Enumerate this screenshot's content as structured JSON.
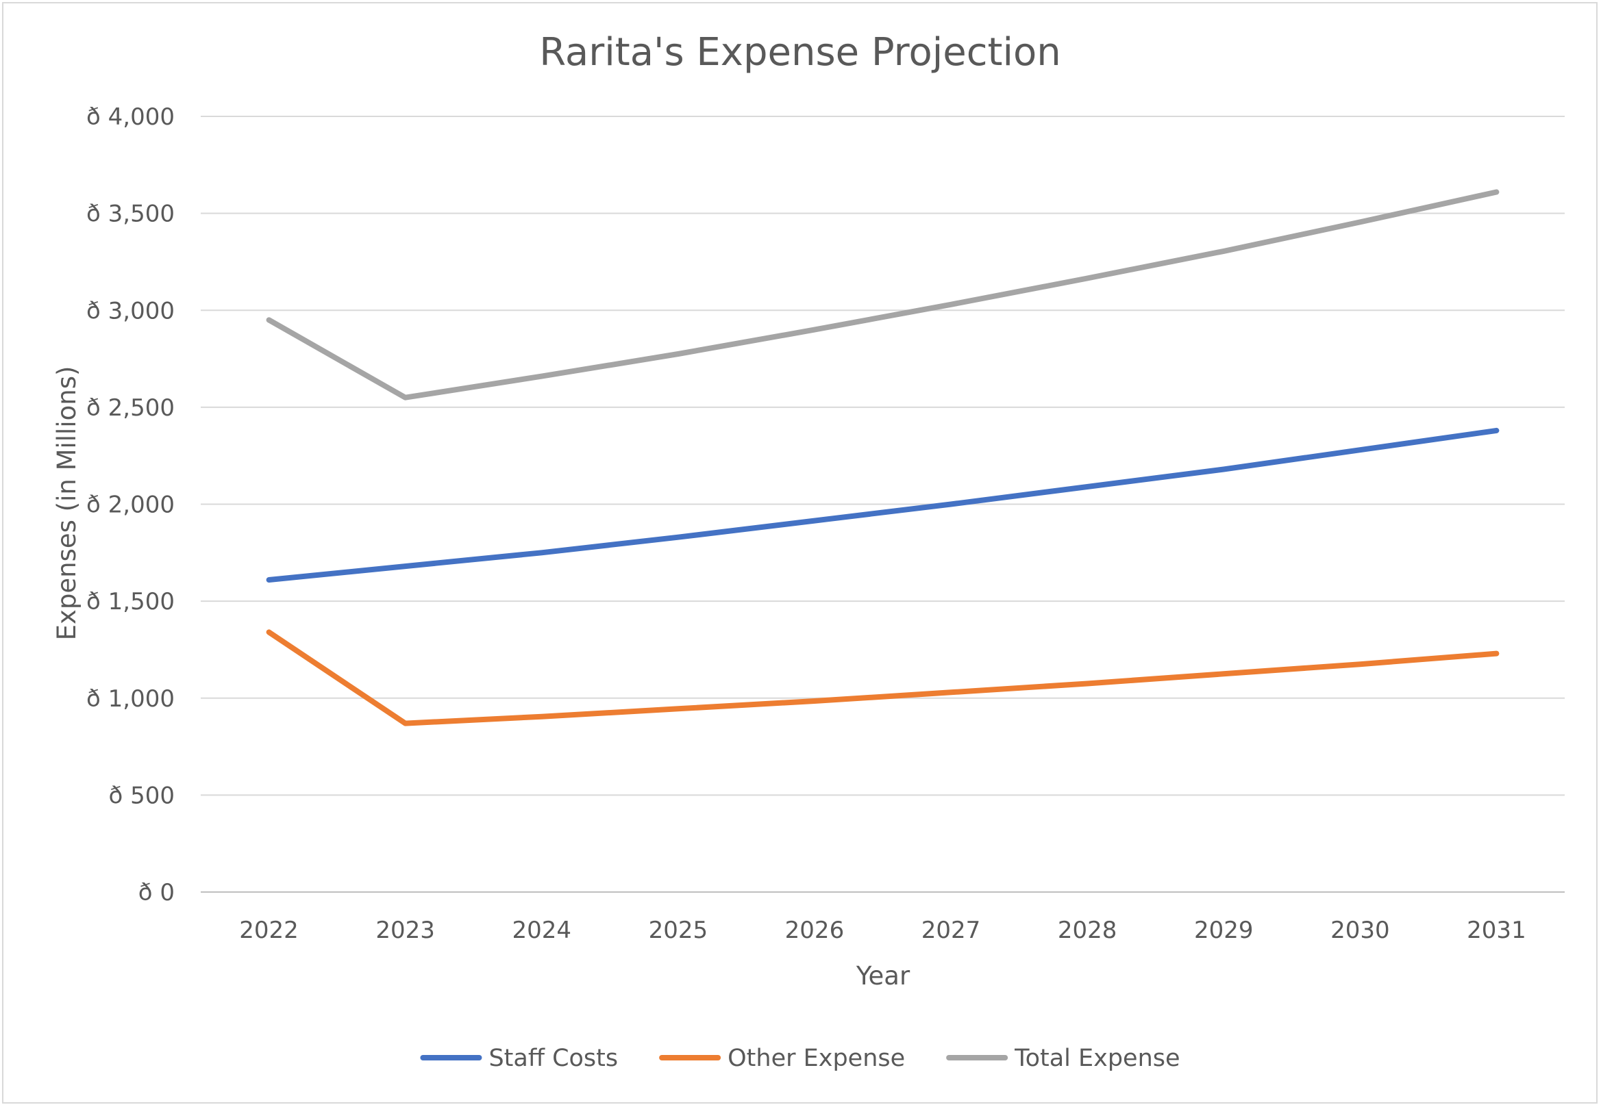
{
  "chart_data": {
    "type": "line",
    "title": "Rarita's Expense Projection",
    "xlabel": "Year",
    "ylabel": "Expenses (in Millions)",
    "categories": [
      "2022",
      "2023",
      "2024",
      "2025",
      "2026",
      "2027",
      "2028",
      "2029",
      "2030",
      "2031"
    ],
    "ylim": [
      0,
      4000
    ],
    "yticks": [
      0,
      500,
      1000,
      1500,
      2000,
      2500,
      3000,
      3500,
      4000
    ],
    "ytick_labels": [
      "ð 0",
      "ð 500",
      "ð 1,000",
      "ð 1,500",
      "ð 2,000",
      "ð 2,500",
      "ð 3,000",
      "ð 3,500",
      "ð 4,000"
    ],
    "grid": true,
    "legend_position": "bottom",
    "series": [
      {
        "name": "Staff Costs",
        "color": "#4472C4",
        "values": [
          1610,
          1680,
          1750,
          1830,
          1915,
          2000,
          2090,
          2180,
          2280,
          2380
        ]
      },
      {
        "name": "Other Expense",
        "color": "#ED7D31",
        "values": [
          1340,
          870,
          905,
          945,
          985,
          1030,
          1075,
          1125,
          1175,
          1230
        ]
      },
      {
        "name": "Total Expense",
        "color": "#A5A5A5",
        "values": [
          2950,
          2550,
          2660,
          2775,
          2900,
          3030,
          3165,
          3305,
          3455,
          3610
        ]
      }
    ]
  }
}
